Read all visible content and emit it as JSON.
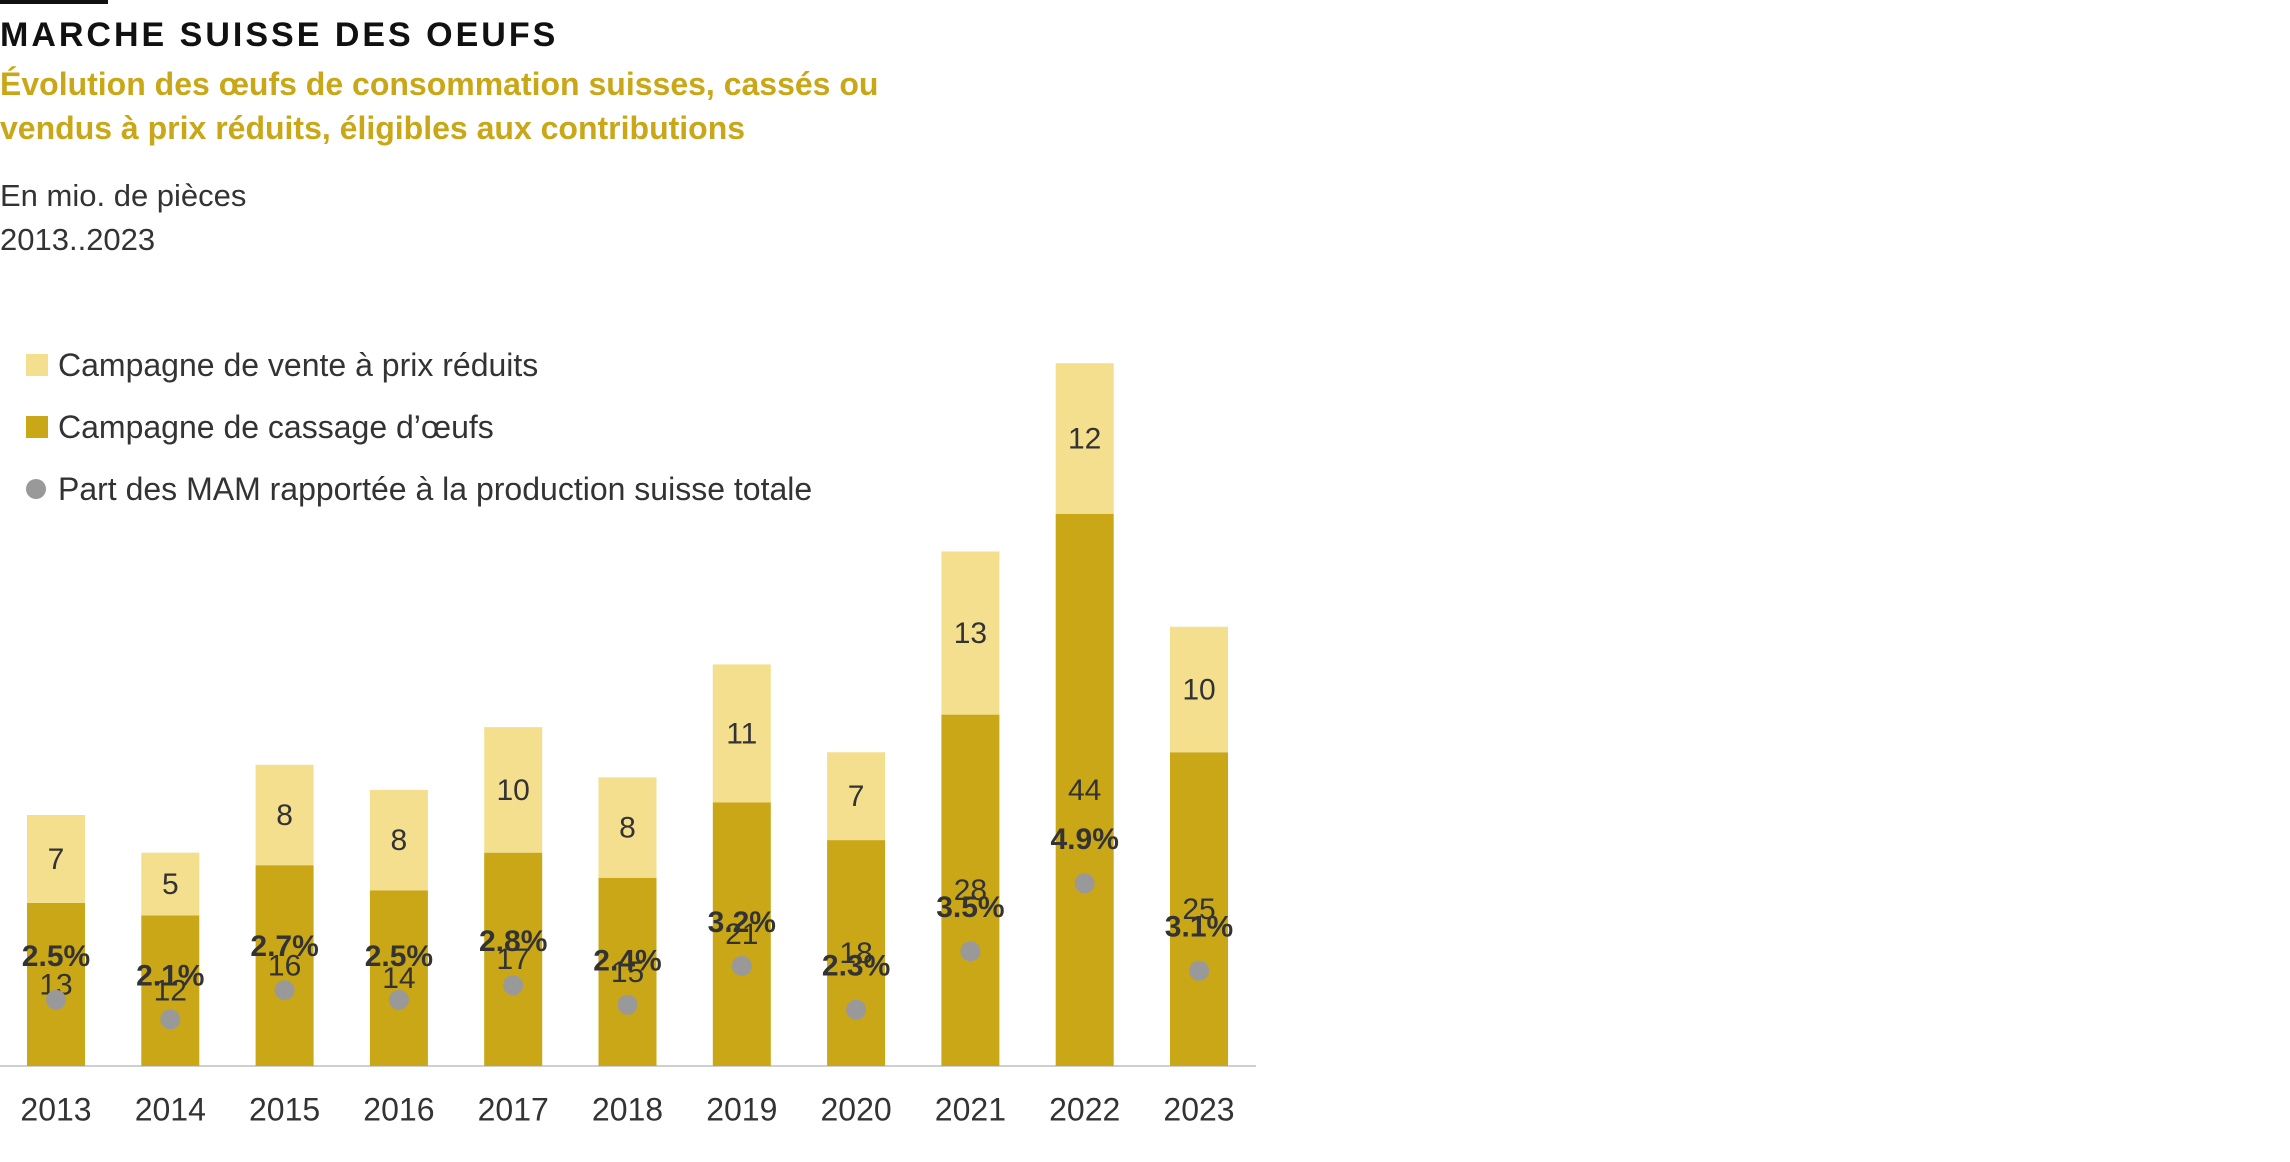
{
  "header": {
    "title": "MARCHE SUISSE DES OEUFS",
    "subtitle": "Évolution des œufs de consommation suisses, cassés ou vendus à prix réduits, éligibles aux contributions",
    "unit": "En mio. de pièces",
    "period": "2013..2023"
  },
  "colors": {
    "reduced_price": "#f3df8d",
    "egg_breaking": "#c9a716",
    "share_dot": "#999999",
    "accent_text": "#c9a716"
  },
  "chart_data": {
    "type": "bar",
    "stacked": true,
    "categories": [
      "2013",
      "2014",
      "2015",
      "2016",
      "2017",
      "2018",
      "2019",
      "2020",
      "2021",
      "2022",
      "2023"
    ],
    "series": [
      {
        "name": "Campagne de cassage d’œufs",
        "values": [
          13,
          12,
          16,
          14,
          17,
          15,
          21,
          18,
          28,
          44,
          25
        ]
      },
      {
        "name": "Campagne de vente à prix réduits",
        "values": [
          7,
          5,
          8,
          8,
          10,
          8,
          11,
          7,
          13,
          12,
          10
        ]
      }
    ],
    "share_series": {
      "name": "Part des MAM rapportée à la production suisse totale",
      "values": [
        2.5,
        2.1,
        2.7,
        2.5,
        2.8,
        2.4,
        3.2,
        2.3,
        3.5,
        4.9,
        3.1
      ],
      "labels": [
        "2.5%",
        "2.1%",
        "2.7%",
        "2.5%",
        "2.8%",
        "2.4%",
        "3.2%",
        "2.3%",
        "3.5%",
        "4.9%",
        "3.1%"
      ]
    },
    "legend_position": "top-left",
    "grid": false
  }
}
